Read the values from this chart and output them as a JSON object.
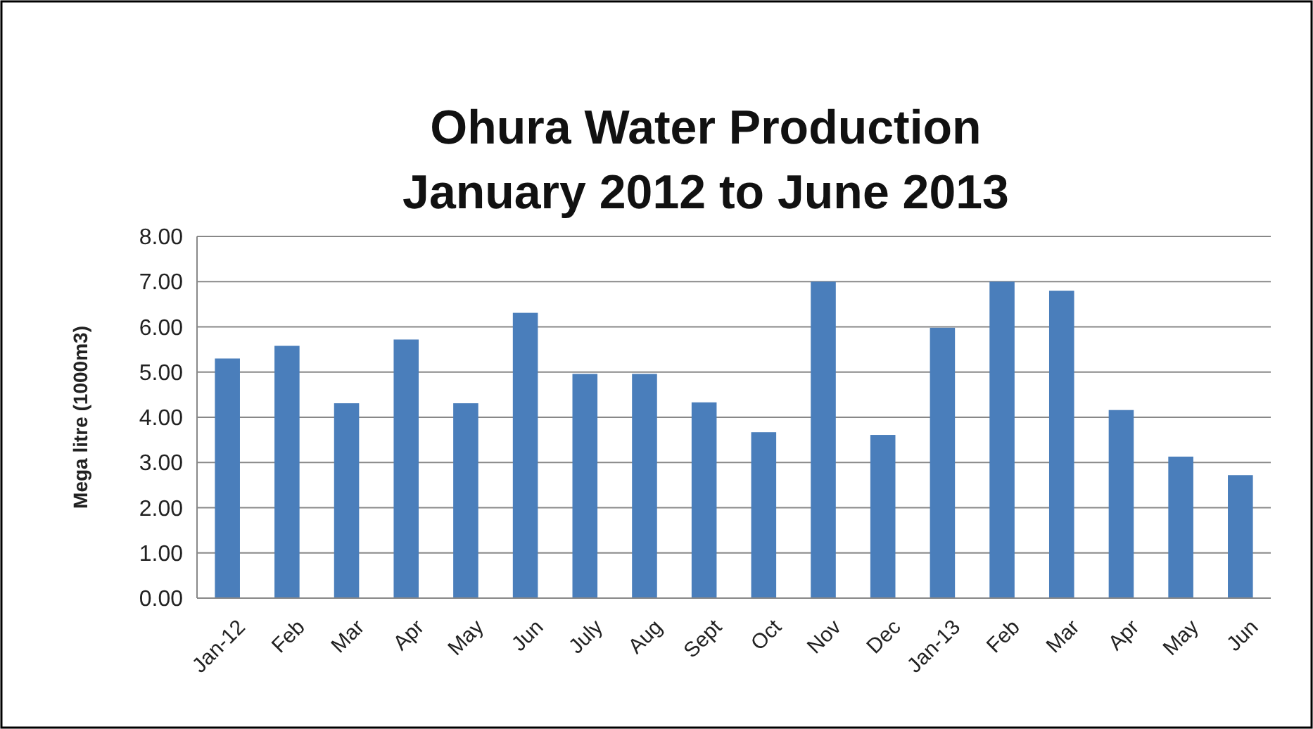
{
  "chart_data": {
    "type": "bar",
    "title": "Ohura Water Production",
    "subtitle": "January 2012 to June 2013",
    "ylabel": "Mega litre  (1000m3)",
    "categories": [
      "Jan-12",
      "Feb",
      "Mar",
      "Apr",
      "May",
      "Jun",
      "July",
      "Aug",
      "Sept",
      "Oct",
      "Nov",
      "Dec",
      "Jan-13",
      "Feb",
      "Mar",
      "Apr",
      "May",
      "Jun"
    ],
    "values": [
      5.3,
      5.58,
      4.31,
      5.72,
      4.31,
      6.31,
      4.96,
      4.96,
      4.33,
      3.67,
      7.0,
      3.61,
      5.98,
      7.0,
      6.8,
      4.16,
      3.13,
      2.72
    ],
    "color": "#4a7ebb",
    "ylim": [
      0,
      8
    ],
    "yticks": [
      {
        "value": 0,
        "label": "0.00"
      },
      {
        "value": 1,
        "label": "1.00"
      },
      {
        "value": 2,
        "label": "2.00"
      },
      {
        "value": 3,
        "label": "3.00"
      },
      {
        "value": 4,
        "label": "4.00"
      },
      {
        "value": 5,
        "label": "5.00"
      },
      {
        "value": 6,
        "label": "6.00"
      },
      {
        "value": 7,
        "label": "7.00"
      },
      {
        "value": 8,
        "label": "8.00"
      }
    ],
    "grid": "y"
  }
}
